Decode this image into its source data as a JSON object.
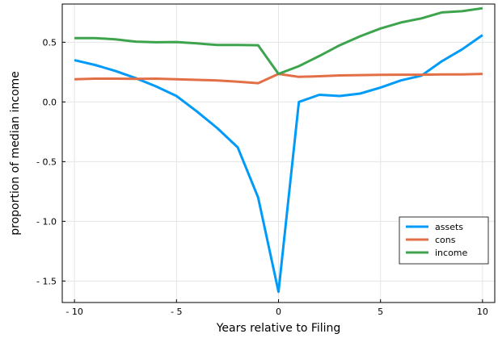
{
  "chart_data": {
    "type": "line",
    "title": "",
    "xlabel": "Years relative to Filing",
    "ylabel": "proportion of median income",
    "xlim": [
      -10.6,
      10.6
    ],
    "ylim": [
      -1.68,
      0.82
    ],
    "grid": true,
    "legend_position": "bottom-right",
    "x_ticks": [
      {
        "value": -10,
        "label": "- 10"
      },
      {
        "value": -5,
        "label": "- 5"
      },
      {
        "value": 0,
        "label": "0"
      },
      {
        "value": 5,
        "label": "5"
      },
      {
        "value": 10,
        "label": "10"
      }
    ],
    "y_ticks": [
      {
        "value": 0.5,
        "label": "0.5"
      },
      {
        "value": 0.0,
        "label": "0.0"
      },
      {
        "value": -0.5,
        "label": "- 0.5"
      },
      {
        "value": -1.0,
        "label": "- 1.0"
      },
      {
        "value": -1.5,
        "label": "- 1.5"
      }
    ],
    "x": [
      -10,
      -9,
      -8,
      -7,
      -6,
      -5,
      -4,
      -3,
      -2,
      -1,
      0,
      1,
      2,
      3,
      4,
      5,
      6,
      7,
      8,
      9,
      10
    ],
    "series": [
      {
        "name": "assets",
        "color": "#009af9",
        "values": [
          0.35,
          0.31,
          0.26,
          0.2,
          0.13,
          0.05,
          -0.08,
          -0.22,
          -0.38,
          -0.8,
          -1.59,
          0.0,
          0.06,
          0.05,
          0.07,
          0.12,
          0.18,
          0.22,
          0.34,
          0.44,
          0.56
        ]
      },
      {
        "name": "cons",
        "color": "#e26f46",
        "values": [
          0.19,
          0.195,
          0.195,
          0.193,
          0.195,
          0.19,
          0.185,
          0.18,
          0.17,
          0.157,
          0.235,
          0.21,
          0.215,
          0.222,
          0.225,
          0.227,
          0.228,
          0.228,
          0.23,
          0.23,
          0.235
        ]
      },
      {
        "name": "income",
        "color": "#3da44d",
        "values": [
          0.535,
          0.535,
          0.525,
          0.505,
          0.5,
          0.502,
          0.49,
          0.477,
          0.477,
          0.475,
          0.235,
          0.3,
          0.385,
          0.475,
          0.55,
          0.615,
          0.665,
          0.7,
          0.75,
          0.76,
          0.785
        ]
      }
    ]
  }
}
